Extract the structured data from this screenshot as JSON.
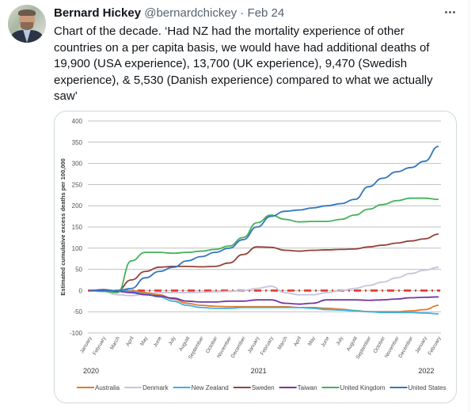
{
  "tweet": {
    "author_name": "Bernard Hickey",
    "author_handle": "@bernardchickey",
    "separator": "·",
    "date": "Feb 24",
    "more_icon": "more-horizontal-icon",
    "text": "Chart of the decade. ‘Had NZ had the mortality experience of other countries on a per capita basis, we would have had additional deaths of 19,900 (USA experience), 13,700 (UK experience), 9,470 (Swedish experience), & 5,530 (Danish experience) compared to what we actually saw’"
  },
  "chart_data": {
    "type": "line",
    "title": "",
    "xlabel": "",
    "ylabel": "Estimated cumulative excess deaths per 100,000",
    "ylim": [
      -100,
      400
    ],
    "yticks": [
      400,
      350,
      300,
      250,
      200,
      150,
      100,
      50,
      0,
      -50,
      -100
    ],
    "grid": true,
    "legend_position": "bottom",
    "x": [
      "January",
      "February",
      "March",
      "April",
      "May",
      "June",
      "July",
      "August",
      "September",
      "October",
      "November",
      "December",
      "January",
      "February",
      "March",
      "April",
      "May",
      "June",
      "July",
      "August",
      "September",
      "October",
      "November",
      "December",
      "January",
      "February"
    ],
    "year_labels": [
      {
        "label": "2020",
        "month_index": 0
      },
      {
        "label": "2021",
        "month_index": 12
      },
      {
        "label": "2022",
        "month_index": 24
      }
    ],
    "reference_line": {
      "name": "Zero baseline",
      "value": 0,
      "color": "#e8362c",
      "style": "dash-dot"
    },
    "series": [
      {
        "name": "Australia",
        "color": "#e07b2a",
        "values": [
          0,
          0,
          0,
          0,
          -5,
          -10,
          -20,
          -30,
          -35,
          -37,
          -38,
          -38,
          -38,
          -38,
          -38,
          -40,
          -40,
          -42,
          -44,
          -47,
          -50,
          -50,
          -50,
          -48,
          -45,
          -35
        ]
      },
      {
        "name": "Denmark",
        "color": "#c9c3dd",
        "values": [
          0,
          -2,
          -10,
          -12,
          -8,
          -5,
          -5,
          -5,
          -4,
          -3,
          -2,
          0,
          5,
          10,
          -5,
          -10,
          -10,
          -5,
          0,
          5,
          12,
          20,
          30,
          40,
          48,
          55
        ]
      },
      {
        "name": "New Zealand",
        "color": "#3fb0e3",
        "values": [
          0,
          0,
          0,
          -2,
          -8,
          -15,
          -25,
          -35,
          -40,
          -42,
          -42,
          -40,
          -40,
          -40,
          -40,
          -40,
          -42,
          -45,
          -46,
          -48,
          -50,
          -52,
          -52,
          -52,
          -53,
          -55
        ]
      },
      {
        "name": "Sweden",
        "color": "#94423a",
        "values": [
          0,
          0,
          0,
          25,
          45,
          55,
          57,
          57,
          56,
          57,
          65,
          85,
          103,
          102,
          95,
          93,
          95,
          96,
          97,
          98,
          103,
          107,
          112,
          117,
          122,
          133
        ]
      },
      {
        "name": "Taiwan",
        "color": "#7238a0",
        "values": [
          0,
          2,
          -2,
          -5,
          -10,
          -13,
          -18,
          -25,
          -27,
          -27,
          -25,
          -25,
          -22,
          -22,
          -30,
          -32,
          -30,
          -22,
          -22,
          -22,
          -23,
          -22,
          -20,
          -17,
          -16,
          -15
        ]
      },
      {
        "name": "United Kingdom",
        "color": "#44b15a",
        "values": [
          0,
          -2,
          -5,
          70,
          90,
          90,
          88,
          90,
          93,
          97,
          105,
          125,
          160,
          178,
          168,
          162,
          163,
          163,
          168,
          178,
          192,
          203,
          212,
          218,
          218,
          215
        ]
      },
      {
        "name": "United States",
        "color": "#3275c2",
        "values": [
          0,
          0,
          0,
          5,
          30,
          45,
          55,
          70,
          80,
          90,
          100,
          120,
          150,
          175,
          187,
          190,
          195,
          200,
          205,
          215,
          245,
          265,
          280,
          290,
          305,
          340
        ]
      }
    ]
  }
}
